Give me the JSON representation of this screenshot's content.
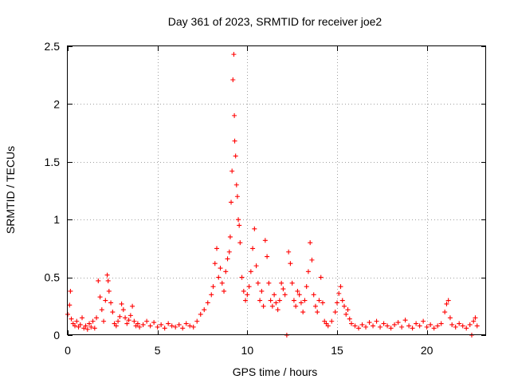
{
  "chart_data": {
    "type": "scatter",
    "title": "Day 361 of 2023, SRMTID for receiver joe2",
    "xlabel": "GPS time / hours",
    "ylabel": "SRMTID / TECUs",
    "xlim": [
      0,
      23.3
    ],
    "ylim": [
      0,
      2.5
    ],
    "x_ticks": [
      0,
      5,
      10,
      15,
      20
    ],
    "x_tick_labels": [
      "0",
      "5",
      "10",
      "15",
      "20"
    ],
    "y_ticks": [
      0,
      0.5,
      1,
      1.5,
      2,
      2.5
    ],
    "y_tick_labels": [
      "0",
      "0.5",
      "1",
      "1.5",
      "2",
      "2.5"
    ],
    "grid": true,
    "marker": "+",
    "color": "#ff0000",
    "series": [
      {
        "name": "SRMTID",
        "points": [
          [
            0.0,
            0.18
          ],
          [
            0.1,
            0.26
          ],
          [
            0.15,
            0.38
          ],
          [
            0.2,
            0.14
          ],
          [
            0.3,
            0.1
          ],
          [
            0.4,
            0.08
          ],
          [
            0.5,
            0.12
          ],
          [
            0.6,
            0.07
          ],
          [
            0.7,
            0.09
          ],
          [
            0.8,
            0.15
          ],
          [
            0.9,
            0.06
          ],
          [
            1.0,
            0.08
          ],
          [
            1.1,
            0.05
          ],
          [
            1.2,
            0.1
          ],
          [
            1.3,
            0.07
          ],
          [
            1.4,
            0.12
          ],
          [
            1.5,
            0.06
          ],
          [
            1.6,
            0.15
          ],
          [
            1.7,
            0.47
          ],
          [
            1.8,
            0.33
          ],
          [
            1.9,
            0.22
          ],
          [
            2.0,
            0.12
          ],
          [
            2.1,
            0.3
          ],
          [
            2.2,
            0.52
          ],
          [
            2.25,
            0.47
          ],
          [
            2.3,
            0.38
          ],
          [
            2.4,
            0.28
          ],
          [
            2.5,
            0.2
          ],
          [
            2.6,
            0.1
          ],
          [
            2.7,
            0.08
          ],
          [
            2.8,
            0.12
          ],
          [
            2.9,
            0.16
          ],
          [
            3.0,
            0.27
          ],
          [
            3.1,
            0.22
          ],
          [
            3.2,
            0.15
          ],
          [
            3.3,
            0.1
          ],
          [
            3.4,
            0.13
          ],
          [
            3.5,
            0.17
          ],
          [
            3.6,
            0.25
          ],
          [
            3.7,
            0.12
          ],
          [
            3.8,
            0.08
          ],
          [
            3.9,
            0.1
          ],
          [
            4.0,
            0.07
          ],
          [
            4.2,
            0.09
          ],
          [
            4.4,
            0.12
          ],
          [
            4.6,
            0.08
          ],
          [
            4.8,
            0.11
          ],
          [
            5.0,
            0.07
          ],
          [
            5.2,
            0.09
          ],
          [
            5.4,
            0.06
          ],
          [
            5.6,
            0.1
          ],
          [
            5.8,
            0.08
          ],
          [
            6.0,
            0.07
          ],
          [
            6.2,
            0.09
          ],
          [
            6.4,
            0.06
          ],
          [
            6.6,
            0.1
          ],
          [
            6.8,
            0.08
          ],
          [
            7.0,
            0.07
          ],
          [
            7.2,
            0.12
          ],
          [
            7.4,
            0.18
          ],
          [
            7.6,
            0.22
          ],
          [
            7.8,
            0.28
          ],
          [
            8.0,
            0.35
          ],
          [
            8.1,
            0.42
          ],
          [
            8.2,
            0.62
          ],
          [
            8.3,
            0.75
          ],
          [
            8.4,
            0.5
          ],
          [
            8.5,
            0.58
          ],
          [
            8.6,
            0.45
          ],
          [
            8.7,
            0.38
          ],
          [
            8.8,
            0.55
          ],
          [
            8.9,
            0.66
          ],
          [
            9.0,
            0.72
          ],
          [
            9.05,
            0.85
          ],
          [
            9.1,
            1.15
          ],
          [
            9.15,
            1.42
          ],
          [
            9.2,
            2.21
          ],
          [
            9.25,
            2.43
          ],
          [
            9.28,
            1.9
          ],
          [
            9.3,
            1.68
          ],
          [
            9.35,
            1.55
          ],
          [
            9.4,
            1.3
          ],
          [
            9.45,
            1.2
          ],
          [
            9.5,
            1.0
          ],
          [
            9.55,
            0.95
          ],
          [
            9.6,
            0.8
          ],
          [
            9.7,
            0.5
          ],
          [
            9.8,
            0.38
          ],
          [
            9.9,
            0.3
          ],
          [
            10.0,
            0.35
          ],
          [
            10.1,
            0.42
          ],
          [
            10.2,
            0.55
          ],
          [
            10.3,
            0.75
          ],
          [
            10.4,
            0.92
          ],
          [
            10.5,
            0.6
          ],
          [
            10.6,
            0.45
          ],
          [
            10.7,
            0.3
          ],
          [
            10.8,
            0.38
          ],
          [
            10.9,
            0.25
          ],
          [
            11.0,
            0.82
          ],
          [
            11.1,
            0.68
          ],
          [
            11.2,
            0.45
          ],
          [
            11.3,
            0.3
          ],
          [
            11.4,
            0.25
          ],
          [
            11.5,
            0.35
          ],
          [
            11.6,
            0.28
          ],
          [
            11.7,
            0.22
          ],
          [
            11.8,
            0.3
          ],
          [
            11.9,
            0.45
          ],
          [
            12.0,
            0.4
          ],
          [
            12.1,
            0.35
          ],
          [
            12.2,
            0.0
          ],
          [
            12.3,
            0.72
          ],
          [
            12.4,
            0.62
          ],
          [
            12.5,
            0.45
          ],
          [
            12.6,
            0.3
          ],
          [
            12.7,
            0.25
          ],
          [
            12.8,
            0.38
          ],
          [
            12.9,
            0.35
          ],
          [
            13.0,
            0.28
          ],
          [
            13.1,
            0.2
          ],
          [
            13.2,
            0.3
          ],
          [
            13.3,
            0.42
          ],
          [
            13.4,
            0.55
          ],
          [
            13.5,
            0.8
          ],
          [
            13.6,
            0.65
          ],
          [
            13.7,
            0.35
          ],
          [
            13.8,
            0.25
          ],
          [
            13.9,
            0.2
          ],
          [
            14.0,
            0.3
          ],
          [
            14.1,
            0.5
          ],
          [
            14.2,
            0.28
          ],
          [
            14.3,
            0.12
          ],
          [
            14.4,
            0.1
          ],
          [
            14.5,
            0.08
          ],
          [
            14.7,
            0.12
          ],
          [
            14.9,
            0.2
          ],
          [
            15.0,
            0.28
          ],
          [
            15.1,
            0.36
          ],
          [
            15.2,
            0.42
          ],
          [
            15.3,
            0.3
          ],
          [
            15.4,
            0.25
          ],
          [
            15.5,
            0.18
          ],
          [
            15.6,
            0.22
          ],
          [
            15.7,
            0.14
          ],
          [
            15.8,
            0.1
          ],
          [
            16.0,
            0.08
          ],
          [
            16.2,
            0.06
          ],
          [
            16.4,
            0.09
          ],
          [
            16.6,
            0.07
          ],
          [
            16.8,
            0.11
          ],
          [
            17.0,
            0.08
          ],
          [
            17.2,
            0.12
          ],
          [
            17.4,
            0.07
          ],
          [
            17.6,
            0.1
          ],
          [
            17.8,
            0.08
          ],
          [
            18.0,
            0.06
          ],
          [
            18.2,
            0.09
          ],
          [
            18.4,
            0.11
          ],
          [
            18.6,
            0.07
          ],
          [
            18.8,
            0.13
          ],
          [
            19.0,
            0.08
          ],
          [
            19.2,
            0.06
          ],
          [
            19.4,
            0.1
          ],
          [
            19.6,
            0.08
          ],
          [
            19.8,
            0.12
          ],
          [
            20.0,
            0.07
          ],
          [
            20.2,
            0.09
          ],
          [
            20.4,
            0.06
          ],
          [
            20.6,
            0.08
          ],
          [
            20.8,
            0.1
          ],
          [
            21.0,
            0.2
          ],
          [
            21.1,
            0.27
          ],
          [
            21.2,
            0.3
          ],
          [
            21.3,
            0.15
          ],
          [
            21.4,
            0.09
          ],
          [
            21.6,
            0.07
          ],
          [
            21.8,
            0.1
          ],
          [
            22.0,
            0.08
          ],
          [
            22.2,
            0.06
          ],
          [
            22.4,
            0.09
          ],
          [
            22.5,
            0.0
          ],
          [
            22.6,
            0.12
          ],
          [
            22.7,
            0.15
          ],
          [
            22.8,
            0.08
          ]
        ]
      }
    ]
  }
}
